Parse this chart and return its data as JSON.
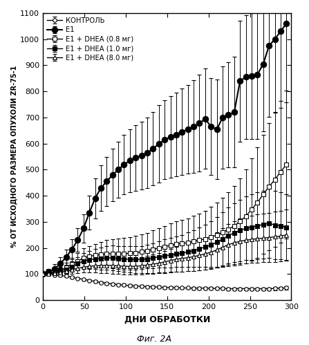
{
  "title": "",
  "xlabel": "ДНИ ОБРАБОТКИ",
  "ylabel": "% ОТ ИСХОДНОГО РАЗМЕРА ОПУХОЛИ ZR-75-1",
  "caption": "Фиг. 2А",
  "xlim": [
    0,
    300
  ],
  "ylim": [
    0,
    1100
  ],
  "yticks": [
    0,
    100,
    200,
    300,
    400,
    500,
    600,
    700,
    800,
    900,
    1000,
    1100
  ],
  "xticks": [
    0,
    50,
    100,
    150,
    200,
    250,
    300
  ],
  "series": {
    "control": {
      "label": "КОНТРОЛЬ",
      "marker": "o",
      "fillstyle": "none",
      "color": "black",
      "linewidth": 1.0,
      "x": [
        0,
        7,
        14,
        21,
        28,
        35,
        42,
        49,
        56,
        63,
        70,
        77,
        84,
        91,
        98,
        105,
        112,
        119,
        126,
        133,
        140,
        147,
        154,
        161,
        168,
        175,
        182,
        189,
        196,
        203,
        210,
        217,
        224,
        231,
        238,
        245,
        252,
        259,
        266,
        273,
        280,
        287,
        294
      ],
      "y": [
        100,
        100,
        97,
        95,
        92,
        88,
        84,
        80,
        76,
        72,
        68,
        65,
        62,
        60,
        58,
        56,
        54,
        53,
        52,
        51,
        50,
        49,
        48,
        48,
        47,
        47,
        46,
        46,
        46,
        45,
        45,
        45,
        44,
        44,
        44,
        44,
        44,
        43,
        44,
        44,
        45,
        46,
        47
      ],
      "yerr": [
        4,
        4,
        4,
        4,
        4,
        4,
        4,
        4,
        4,
        5,
        5,
        5,
        5,
        5,
        5,
        5,
        5,
        5,
        5,
        5,
        5,
        5,
        5,
        5,
        5,
        5,
        5,
        5,
        5,
        5,
        5,
        5,
        5,
        5,
        5,
        5,
        5,
        5,
        5,
        5,
        6,
        6,
        6
      ]
    },
    "e1": {
      "label": "Е1",
      "marker": "o",
      "fillstyle": "full",
      "color": "black",
      "linewidth": 1.5,
      "x": [
        0,
        7,
        14,
        21,
        28,
        35,
        42,
        49,
        56,
        63,
        70,
        77,
        84,
        91,
        98,
        105,
        112,
        119,
        126,
        133,
        140,
        147,
        154,
        161,
        168,
        175,
        182,
        189,
        196,
        203,
        210,
        217,
        224,
        231,
        238,
        245,
        252,
        259,
        266,
        273,
        280,
        287,
        294
      ],
      "y": [
        100,
        108,
        120,
        140,
        165,
        195,
        230,
        275,
        335,
        390,
        430,
        455,
        480,
        500,
        520,
        535,
        545,
        555,
        565,
        580,
        600,
        615,
        625,
        635,
        645,
        655,
        665,
        678,
        695,
        665,
        655,
        700,
        710,
        720,
        840,
        855,
        860,
        865,
        905,
        975,
        1000,
        1030,
        1060
      ],
      "yerr": [
        5,
        12,
        18,
        24,
        30,
        38,
        45,
        55,
        65,
        78,
        88,
        93,
        100,
        108,
        115,
        120,
        125,
        130,
        135,
        140,
        148,
        152,
        156,
        160,
        165,
        170,
        178,
        185,
        192,
        186,
        192,
        196,
        202,
        212,
        232,
        238,
        242,
        247,
        257,
        272,
        282,
        292,
        302
      ]
    },
    "e1_dhea_03": {
      "label": "Е1 + DHEA (0.8 мг)",
      "marker": "s",
      "fillstyle": "none",
      "color": "black",
      "linewidth": 1.0,
      "x": [
        0,
        7,
        14,
        21,
        28,
        35,
        42,
        49,
        56,
        63,
        70,
        77,
        84,
        91,
        98,
        105,
        112,
        119,
        126,
        133,
        140,
        147,
        154,
        161,
        168,
        175,
        182,
        189,
        196,
        203,
        210,
        217,
        224,
        231,
        238,
        245,
        252,
        259,
        266,
        273,
        280,
        287,
        294
      ],
      "y": [
        100,
        103,
        108,
        115,
        125,
        138,
        150,
        162,
        168,
        172,
        175,
        178,
        178,
        178,
        178,
        180,
        182,
        185,
        190,
        195,
        200,
        205,
        210,
        215,
        218,
        220,
        225,
        230,
        235,
        242,
        250,
        260,
        272,
        285,
        302,
        322,
        348,
        375,
        405,
        435,
        462,
        492,
        520
      ],
      "yerr": [
        5,
        8,
        10,
        14,
        18,
        24,
        30,
        36,
        40,
        44,
        48,
        52,
        55,
        58,
        60,
        62,
        64,
        66,
        68,
        72,
        76,
        80,
        84,
        88,
        90,
        93,
        98,
        103,
        108,
        115,
        123,
        132,
        142,
        152,
        165,
        180,
        196,
        212,
        228,
        244,
        258,
        272,
        284
      ]
    },
    "e1_dhea_10": {
      "label": "Е1 + DHEA (1.0 мг)",
      "marker": "s",
      "fillstyle": "full",
      "color": "black",
      "linewidth": 1.0,
      "x": [
        0,
        7,
        14,
        21,
        28,
        35,
        42,
        49,
        56,
        63,
        70,
        77,
        84,
        91,
        98,
        105,
        112,
        119,
        126,
        133,
        140,
        147,
        154,
        161,
        168,
        175,
        182,
        189,
        196,
        203,
        210,
        217,
        224,
        231,
        238,
        245,
        252,
        259,
        266,
        273,
        280,
        287,
        294
      ],
      "y": [
        100,
        103,
        107,
        112,
        118,
        128,
        140,
        150,
        155,
        158,
        160,
        162,
        162,
        160,
        158,
        157,
        156,
        156,
        158,
        162,
        166,
        170,
        173,
        177,
        180,
        185,
        190,
        197,
        204,
        212,
        222,
        235,
        248,
        258,
        268,
        275,
        280,
        285,
        290,
        295,
        288,
        285,
        280
      ],
      "yerr": [
        5,
        7,
        9,
        12,
        16,
        20,
        26,
        31,
        35,
        38,
        42,
        45,
        47,
        48,
        49,
        50,
        51,
        52,
        54,
        57,
        60,
        63,
        65,
        68,
        70,
        74,
        78,
        82,
        86,
        90,
        96,
        102,
        108,
        113,
        118,
        122,
        125,
        128,
        130,
        132,
        130,
        128,
        126
      ]
    },
    "e1_dhea_80": {
      "label": "Е1 + DHEA (8.0 мг)",
      "marker": "^",
      "fillstyle": "none",
      "color": "black",
      "linewidth": 1.0,
      "x": [
        0,
        7,
        14,
        21,
        28,
        35,
        42,
        49,
        56,
        63,
        70,
        77,
        84,
        91,
        98,
        105,
        112,
        119,
        126,
        133,
        140,
        147,
        154,
        161,
        168,
        175,
        182,
        189,
        196,
        203,
        210,
        217,
        224,
        231,
        238,
        245,
        252,
        259,
        266,
        273,
        280,
        287,
        294
      ],
      "y": [
        100,
        102,
        104,
        107,
        111,
        116,
        122,
        127,
        130,
        132,
        133,
        134,
        133,
        132,
        130,
        130,
        130,
        132,
        135,
        138,
        142,
        147,
        152,
        157,
        160,
        163,
        167,
        172,
        178,
        184,
        193,
        203,
        213,
        220,
        226,
        230,
        233,
        236,
        238,
        240,
        243,
        246,
        250
      ],
      "yerr": [
        4,
        6,
        7,
        9,
        11,
        14,
        18,
        21,
        24,
        26,
        28,
        30,
        31,
        32,
        32,
        32,
        32,
        33,
        35,
        37,
        39,
        42,
        45,
        48,
        50,
        52,
        54,
        57,
        60,
        64,
        68,
        73,
        78,
        82,
        86,
        88,
        90,
        92,
        93,
        95,
        96,
        97,
        98
      ]
    }
  }
}
